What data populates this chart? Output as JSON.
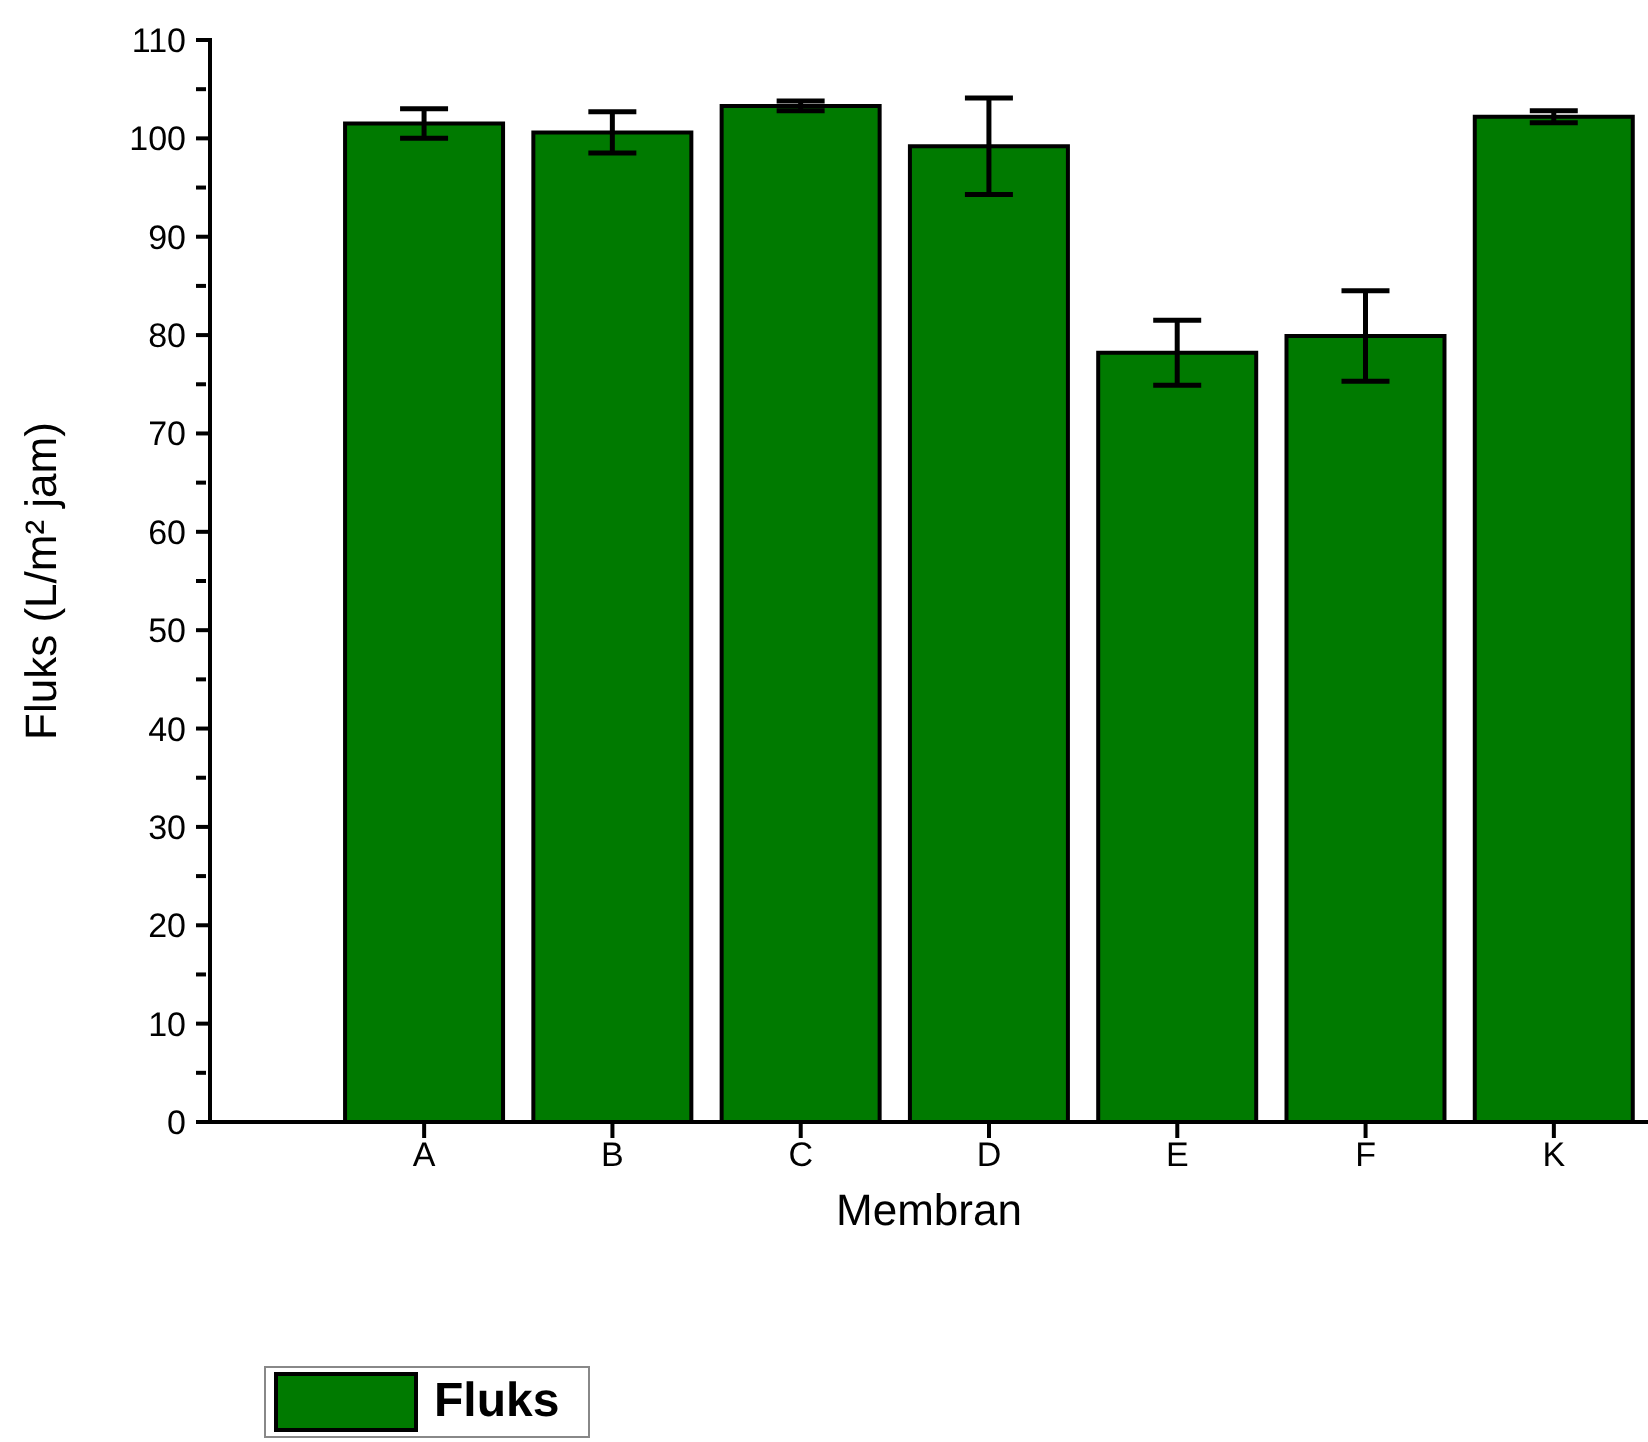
{
  "chart_data": {
    "type": "bar",
    "xlabel": "Membran",
    "ylabel": "Fluks (L/m² jam)",
    "categories": [
      "A",
      "B",
      "C",
      "D",
      "E",
      "F",
      "K"
    ],
    "series": [
      {
        "name": "Fluks",
        "color": "#007a00",
        "values": [
          101.5,
          100.6,
          103.3,
          99.2,
          78.2,
          79.9,
          102.2
        ],
        "errors": [
          1.5,
          2.1,
          0.5,
          4.9,
          3.3,
          4.6,
          0.6
        ]
      }
    ],
    "ylim": [
      0,
      110
    ],
    "yticks": [
      0,
      {
        "value": 5,
        "label": null
      },
      10,
      {
        "value": 15,
        "label": null
      },
      20,
      {
        "value": 25,
        "label": null
      },
      30,
      {
        "value": 35,
        "label": null
      },
      40,
      {
        "value": 45,
        "label": null
      },
      50,
      {
        "value": 55,
        "label": null
      },
      60,
      {
        "value": 65,
        "label": null
      },
      70,
      {
        "value": 75,
        "label": null
      },
      80,
      {
        "value": 85,
        "label": null
      },
      90,
      {
        "value": 95,
        "label": null
      },
      100,
      {
        "value": 105,
        "label": null
      },
      110
    ],
    "grid": false,
    "legend": "bottom left"
  }
}
